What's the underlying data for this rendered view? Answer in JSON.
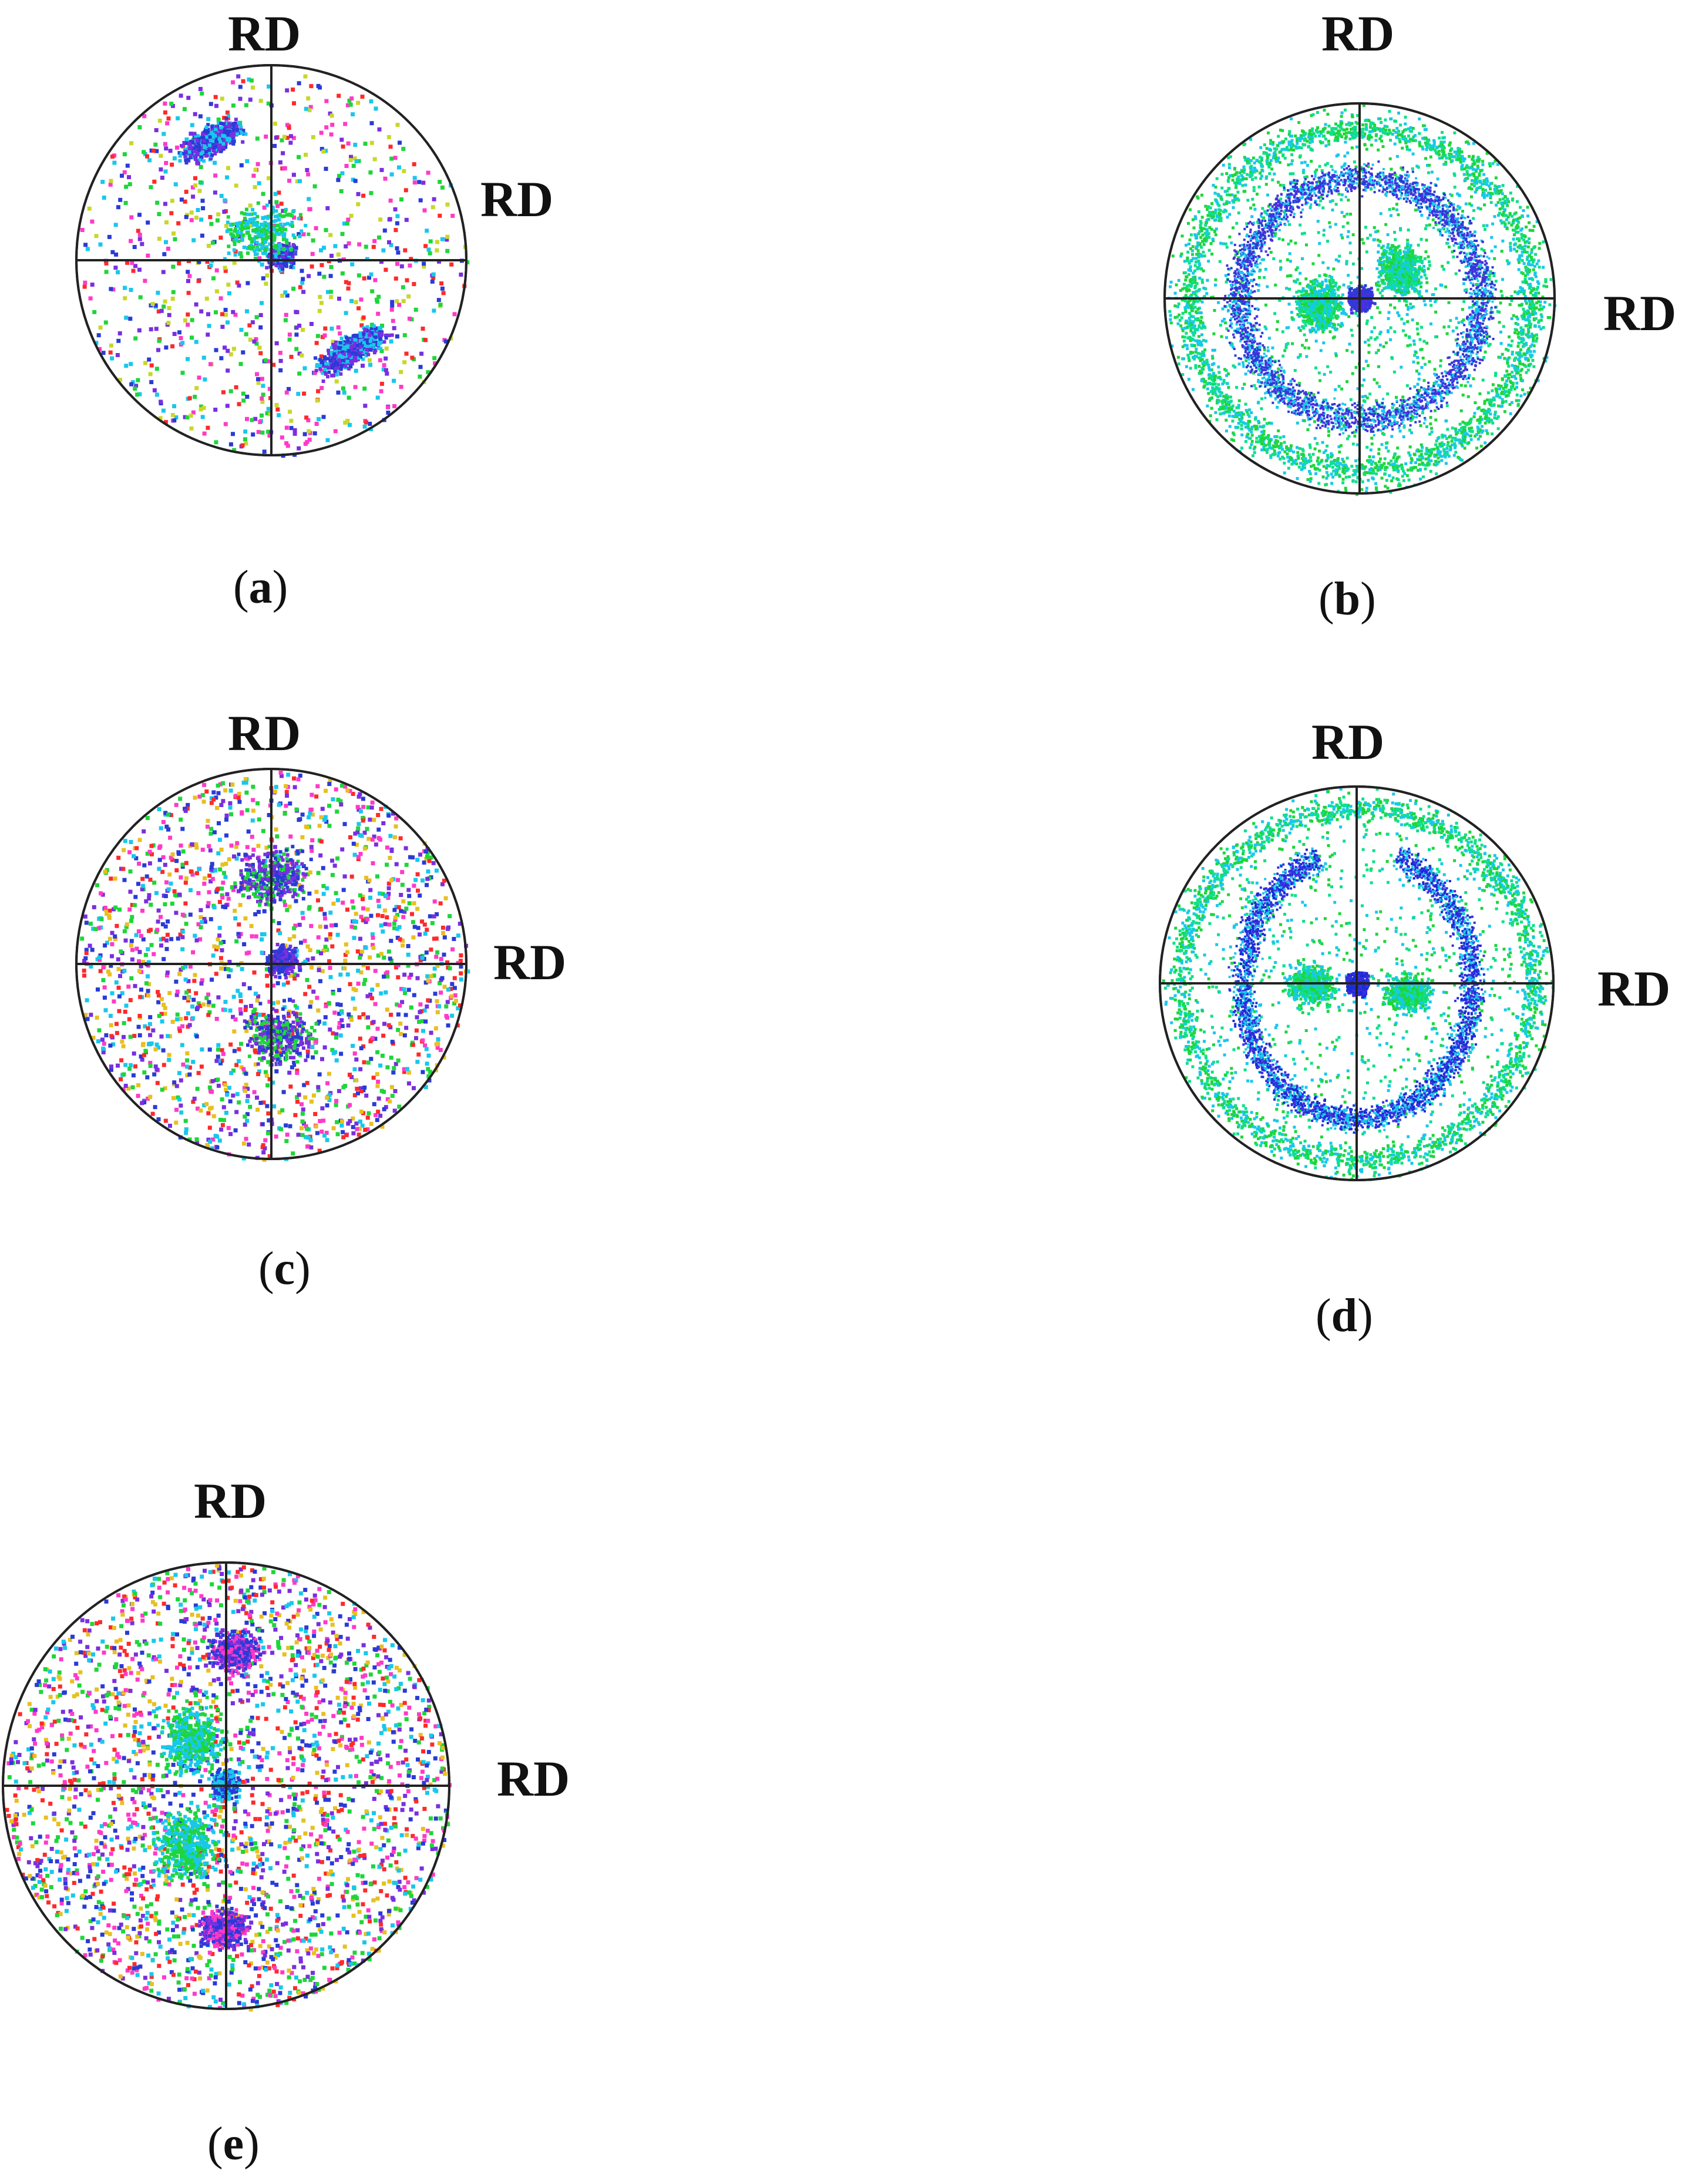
{
  "panels": [
    {
      "id": "a",
      "caption_letter": "a",
      "label_top": "RD",
      "label_right": "RD",
      "pattern": "two-diagonal-clusters",
      "colors": [
        "#2a3bd6",
        "#7a2fe0",
        "#18c8ec",
        "#1ed63a",
        "#ff2a2a",
        "#ff3ac8",
        "#c8d82a"
      ]
    },
    {
      "id": "b",
      "caption_letter": "b",
      "label_top": "RD",
      "label_right": "RD",
      "pattern": "ring-with-center",
      "colors": [
        "#2a3bd6",
        "#4a2fe0",
        "#18c8ec",
        "#1ed63a",
        "#0fe08a"
      ]
    },
    {
      "id": "c",
      "caption_letter": "c",
      "label_top": "RD",
      "label_right": "RD",
      "pattern": "random-scatter",
      "colors": [
        "#2a3bd6",
        "#7a2fe0",
        "#18c8ec",
        "#1ed63a",
        "#ff2a2a",
        "#ff3ac8",
        "#e8c020"
      ]
    },
    {
      "id": "d",
      "caption_letter": "d",
      "label_top": "RD",
      "label_right": "RD",
      "pattern": "open-ring-with-center",
      "colors": [
        "#1a2bd6",
        "#3a2fe0",
        "#18c8ec",
        "#1ed63a",
        "#0fe08a"
      ]
    },
    {
      "id": "e",
      "caption_letter": "e",
      "label_top": "RD",
      "label_right": "RD",
      "pattern": "vertical-clusters",
      "colors": [
        "#2a3bd6",
        "#7a2fe0",
        "#18c8ec",
        "#1ed63a",
        "#ff2a2a",
        "#ff3ac8",
        "#e8c020"
      ]
    }
  ]
}
